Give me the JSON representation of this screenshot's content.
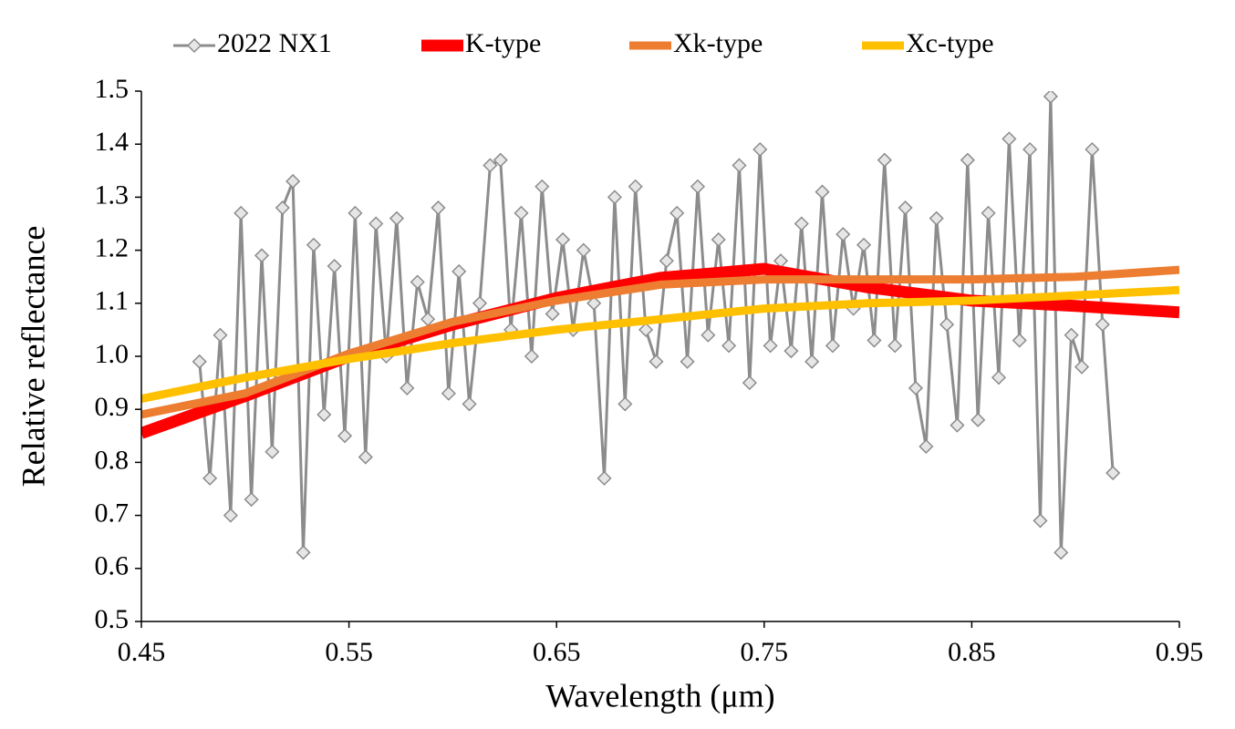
{
  "chart_data": {
    "type": "line",
    "x_label": "Wavelength (μm)",
    "y_label": "Relative reflectance",
    "xlim": [
      0.45,
      0.95
    ],
    "xticks": [
      0.45,
      0.55,
      0.65,
      0.75,
      0.85,
      0.95
    ],
    "ylim": [
      0.5,
      1.5
    ],
    "yticks": [
      0.5,
      0.6,
      0.7,
      0.8,
      0.9,
      {
        "value": 1,
        "label": "1.0"
      },
      1.1,
      1.2,
      1.3,
      1.4,
      1.5
    ],
    "legend": "top",
    "series": [
      {
        "name": "2022 NX1",
        "color": "#8c8c8c",
        "marker": "diamond",
        "x": [
          0.478,
          0.483,
          0.488,
          0.493,
          0.498,
          0.503,
          0.508,
          0.513,
          0.518,
          0.523,
          0.528,
          0.533,
          0.538,
          0.543,
          0.548,
          0.553,
          0.558,
          0.563,
          0.568,
          0.573,
          0.578,
          0.583,
          0.588,
          0.593,
          0.598,
          0.603,
          0.608,
          0.613,
          0.618,
          0.623,
          0.628,
          0.633,
          0.638,
          0.643,
          0.648,
          0.653,
          0.658,
          0.663,
          0.668,
          0.673,
          0.678,
          0.683,
          0.688,
          0.693,
          0.698,
          0.703,
          0.708,
          0.713,
          0.718,
          0.723,
          0.728,
          0.733,
          0.738,
          0.743,
          0.748,
          0.753,
          0.758,
          0.763,
          0.768,
          0.773,
          0.778,
          0.783,
          0.788,
          0.793,
          0.798,
          0.803,
          0.808,
          0.813,
          0.818,
          0.823,
          0.828,
          0.833,
          0.838,
          0.843,
          0.848,
          0.853,
          0.858,
          0.863,
          0.868,
          0.873,
          0.878,
          0.883,
          0.888,
          0.893,
          0.898,
          0.903,
          0.908,
          0.913,
          0.918
        ],
        "values": [
          0.99,
          0.77,
          1.04,
          0.7,
          1.27,
          0.73,
          1.19,
          0.82,
          1.28,
          1.33,
          0.63,
          1.21,
          0.89,
          1.17,
          0.85,
          1.27,
          0.81,
          1.25,
          1.0,
          1.26,
          0.94,
          1.14,
          1.07,
          1.28,
          0.93,
          1.16,
          0.91,
          1.1,
          1.36,
          1.37,
          1.05,
          1.27,
          1.0,
          1.32,
          1.08,
          1.22,
          1.05,
          1.2,
          1.1,
          0.77,
          1.3,
          0.91,
          1.32,
          1.05,
          0.99,
          1.18,
          1.27,
          0.99,
          1.32,
          1.04,
          1.22,
          1.02,
          1.36,
          0.95,
          1.39,
          1.02,
          1.18,
          1.01,
          1.25,
          0.99,
          1.31,
          1.02,
          1.23,
          1.09,
          1.21,
          1.03,
          1.37,
          1.02,
          1.28,
          0.94,
          0.83,
          1.26,
          1.06,
          0.87,
          1.37,
          0.88,
          1.27,
          0.96,
          1.41,
          1.03,
          1.39,
          0.69,
          1.49,
          0.63,
          1.04,
          0.98,
          1.39,
          1.06,
          0.78
        ]
      },
      {
        "name": "K-type",
        "color": "#ff0000",
        "width": 13,
        "x": [
          0.45,
          0.5,
          0.55,
          0.6,
          0.65,
          0.7,
          0.75,
          0.8,
          0.85,
          0.9,
          0.95
        ],
        "values": [
          0.855,
          0.925,
          1.0,
          1.06,
          1.11,
          1.148,
          1.165,
          1.13,
          1.105,
          1.095,
          1.083
        ]
      },
      {
        "name": "Xk-type",
        "color": "#ed7d31",
        "width": 9,
        "x": [
          0.45,
          0.5,
          0.55,
          0.6,
          0.65,
          0.7,
          0.75,
          0.8,
          0.85,
          0.9,
          0.95
        ],
        "values": [
          0.89,
          0.93,
          1.005,
          1.065,
          1.105,
          1.135,
          1.145,
          1.145,
          1.145,
          1.15,
          1.163
        ]
      },
      {
        "name": "Xc-type",
        "color": "#ffc000",
        "width": 9,
        "x": [
          0.45,
          0.5,
          0.55,
          0.6,
          0.65,
          0.7,
          0.75,
          0.8,
          0.85,
          0.9,
          0.95
        ],
        "values": [
          0.92,
          0.96,
          0.995,
          1.025,
          1.05,
          1.07,
          1.09,
          1.1,
          1.105,
          1.115,
          1.125
        ]
      }
    ]
  }
}
